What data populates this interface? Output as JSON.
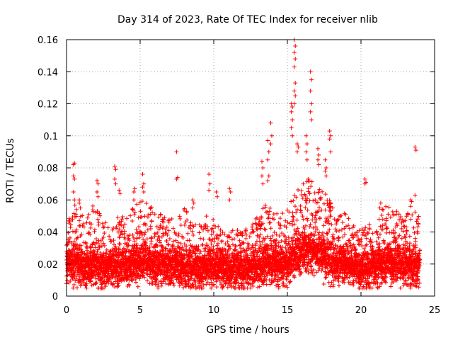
{
  "chart_data": {
    "type": "scatter",
    "title": "Day 314 of 2023, Rate Of TEC Index for receiver nlib",
    "xlabel": "GPS time / hours",
    "ylabel": "ROTI / TECUs",
    "xlim": [
      0,
      25
    ],
    "ylim": [
      0,
      0.16
    ],
    "x_ticks": [
      0,
      5,
      10,
      15,
      20,
      25
    ],
    "x_tick_labels": [
      "0",
      "5",
      "10",
      "15",
      "20",
      "25"
    ],
    "y_ticks": [
      0,
      0.02,
      0.04,
      0.06,
      0.08,
      0.1,
      0.12,
      0.14,
      0.16
    ],
    "y_tick_labels": [
      "0",
      "0.02",
      "0.04",
      "0.06",
      "0.08",
      "0.1",
      "0.12",
      "0.14",
      "0.16"
    ],
    "grid": true,
    "marker": "+",
    "color": "#ff0000",
    "envelope": {
      "x": [
        0,
        0.5,
        1,
        1.5,
        2,
        2.5,
        3,
        3.5,
        4,
        4.5,
        5,
        5.5,
        6,
        6.5,
        7,
        7.5,
        8,
        8.5,
        9,
        9.5,
        10,
        10.5,
        11,
        11.5,
        12,
        12.5,
        13,
        13.5,
        14,
        14.5,
        15,
        15.5,
        16,
        16.5,
        17,
        17.5,
        18,
        18.5,
        19,
        19.5,
        20,
        20.5,
        21,
        21.5,
        22,
        22.5,
        23,
        23.5,
        24
      ],
      "median": [
        0.019,
        0.02,
        0.018,
        0.018,
        0.019,
        0.017,
        0.018,
        0.018,
        0.019,
        0.02,
        0.021,
        0.022,
        0.02,
        0.019,
        0.018,
        0.019,
        0.018,
        0.017,
        0.017,
        0.018,
        0.018,
        0.017,
        0.016,
        0.016,
        0.017,
        0.017,
        0.018,
        0.02,
        0.021,
        0.019,
        0.019,
        0.025,
        0.027,
        0.028,
        0.026,
        0.025,
        0.022,
        0.02,
        0.02,
        0.019,
        0.017,
        0.017,
        0.018,
        0.02,
        0.021,
        0.02,
        0.019,
        0.018,
        0.018
      ],
      "max": [
        0.045,
        0.058,
        0.05,
        0.052,
        0.06,
        0.045,
        0.048,
        0.052,
        0.05,
        0.055,
        0.06,
        0.058,
        0.055,
        0.05,
        0.048,
        0.05,
        0.055,
        0.048,
        0.045,
        0.05,
        0.048,
        0.045,
        0.04,
        0.042,
        0.04,
        0.045,
        0.05,
        0.058,
        0.055,
        0.05,
        0.055,
        0.065,
        0.07,
        0.075,
        0.07,
        0.065,
        0.06,
        0.05,
        0.055,
        0.045,
        0.042,
        0.045,
        0.05,
        0.055,
        0.058,
        0.052,
        0.05,
        0.055,
        0.05
      ]
    },
    "spikes": [
      {
        "x": 0.5,
        "values": [
          0.082,
          0.083,
          0.075,
          0.073,
          0.065,
          0.06
        ]
      },
      {
        "x": 0.9,
        "values": [
          0.058,
          0.055,
          0.06
        ]
      },
      {
        "x": 2.1,
        "values": [
          0.072,
          0.07,
          0.065,
          0.062
        ]
      },
      {
        "x": 3.3,
        "values": [
          0.081,
          0.079,
          0.073,
          0.07
        ]
      },
      {
        "x": 3.6,
        "values": [
          0.066,
          0.064
        ]
      },
      {
        "x": 4.6,
        "values": [
          0.065,
          0.067,
          0.06
        ]
      },
      {
        "x": 5.2,
        "values": [
          0.076,
          0.07,
          0.068,
          0.065
        ]
      },
      {
        "x": 7.5,
        "values": [
          0.09,
          0.074,
          0.073
        ]
      },
      {
        "x": 8.6,
        "values": [
          0.06,
          0.058,
          0.055
        ]
      },
      {
        "x": 9.7,
        "values": [
          0.076,
          0.07,
          0.066
        ]
      },
      {
        "x": 10.2,
        "values": [
          0.065,
          0.062
        ]
      },
      {
        "x": 11.1,
        "values": [
          0.067,
          0.065,
          0.06
        ]
      },
      {
        "x": 13.3,
        "values": [
          0.084,
          0.08,
          0.075,
          0.07
        ]
      },
      {
        "x": 13.7,
        "values": [
          0.097,
          0.09,
          0.085,
          0.075,
          0.072
        ]
      },
      {
        "x": 13.9,
        "values": [
          0.108,
          0.1,
          0.095
        ]
      },
      {
        "x": 15.3,
        "values": [
          0.12,
          0.118,
          0.115,
          0.11,
          0.105,
          0.1
        ]
      },
      {
        "x": 15.5,
        "values": [
          0.16,
          0.156,
          0.152,
          0.148,
          0.143,
          0.133,
          0.128,
          0.125,
          0.12
        ]
      },
      {
        "x": 15.7,
        "values": [
          0.095,
          0.093,
          0.09
        ]
      },
      {
        "x": 16.3,
        "values": [
          0.1,
          0.095,
          0.09,
          0.085
        ]
      },
      {
        "x": 16.6,
        "values": [
          0.14,
          0.135,
          0.128,
          0.12,
          0.115,
          0.11
        ]
      },
      {
        "x": 17.1,
        "values": [
          0.092,
          0.088,
          0.085,
          0.082
        ]
      },
      {
        "x": 17.6,
        "values": [
          0.085,
          0.08,
          0.078,
          0.075
        ]
      },
      {
        "x": 17.9,
        "values": [
          0.103,
          0.1,
          0.098,
          0.09
        ]
      },
      {
        "x": 20.3,
        "values": [
          0.073,
          0.071,
          0.07
        ]
      },
      {
        "x": 21.3,
        "values": [
          0.055,
          0.058
        ]
      },
      {
        "x": 23.4,
        "values": [
          0.06,
          0.059,
          0.056
        ]
      },
      {
        "x": 23.7,
        "values": [
          0.093,
          0.091,
          0.063
        ]
      }
    ]
  }
}
